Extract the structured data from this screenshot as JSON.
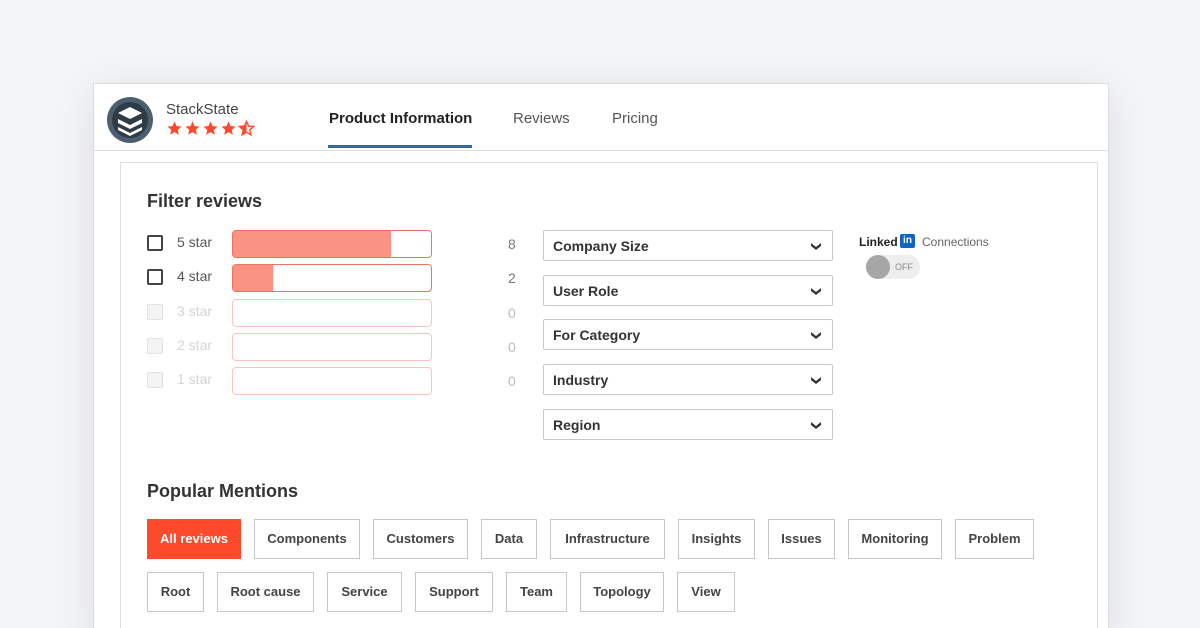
{
  "product": {
    "name": "StackState",
    "rating_stars": 4.5
  },
  "nav": {
    "tabs": [
      {
        "label": "Product Information",
        "active": true
      },
      {
        "label": "Reviews",
        "active": false
      },
      {
        "label": "Pricing",
        "active": false
      }
    ]
  },
  "filter": {
    "title": "Filter reviews",
    "ratings": [
      {
        "label": "5 star",
        "count": "8",
        "fill": 0.8,
        "enabled": true
      },
      {
        "label": "4 star",
        "count": "2",
        "fill": 0.2,
        "enabled": true
      },
      {
        "label": "3 star",
        "count": "0",
        "fill": 0,
        "enabled": false
      },
      {
        "label": "2 star",
        "count": "0",
        "fill": 0,
        "enabled": false
      },
      {
        "label": "1 star",
        "count": "0",
        "fill": 0,
        "enabled": false
      }
    ],
    "dropdowns": [
      "Company Size",
      "User Role",
      "For Category",
      "Industry",
      "Region"
    ],
    "linkedin": {
      "brand": "Linked",
      "brand_in": "in",
      "label": "Connections",
      "toggle": "OFF"
    }
  },
  "mentions": {
    "title": "Popular Mentions",
    "tags": [
      {
        "label": "All reviews",
        "active": true
      },
      {
        "label": "Components"
      },
      {
        "label": "Customers"
      },
      {
        "label": "Data"
      },
      {
        "label": "Infrastructure"
      },
      {
        "label": "Insights"
      },
      {
        "label": "Issues"
      },
      {
        "label": "Monitoring"
      },
      {
        "label": "Problem"
      },
      {
        "label": "Root"
      },
      {
        "label": "Root cause"
      },
      {
        "label": "Service"
      },
      {
        "label": "Support"
      },
      {
        "label": "Team"
      },
      {
        "label": "Topology"
      },
      {
        "label": "View"
      }
    ]
  },
  "colors": {
    "accent": "#ff492c",
    "bar_fill": "#fb9384",
    "tab_underline": "#2e6da4",
    "linkedin": "#0a66c2"
  }
}
